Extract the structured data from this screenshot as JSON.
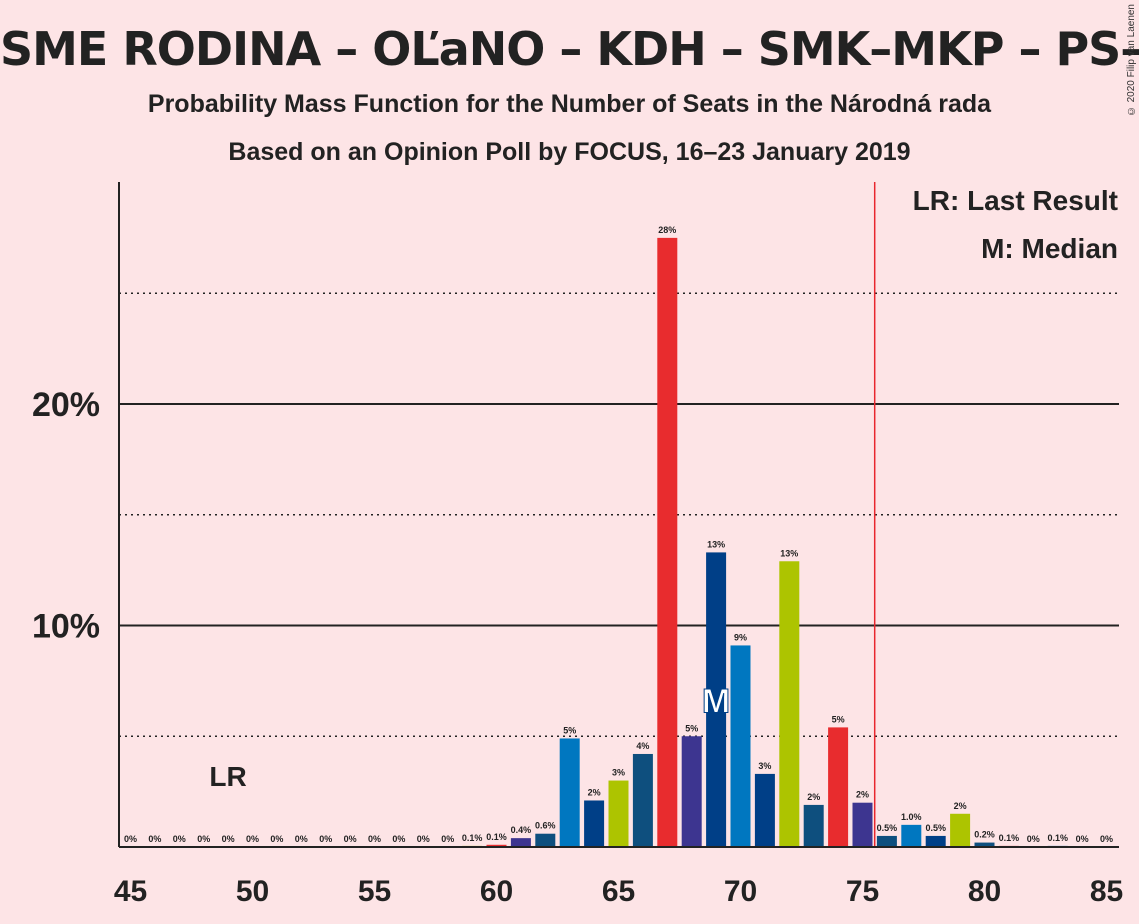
{
  "title": "SME RODINA – OĽaNO – KDH – SMK–MKP – PS–SPOLU",
  "subtitle1": "Probability Mass Function for the Number of Seats in the Národná rada",
  "subtitle2": "Based on an Opinion Poll by FOCUS, 16–23 January 2019",
  "copyright": "© 2020 Filip van Laenen",
  "legend": {
    "lr": "LR: Last Result",
    "median": "M: Median"
  },
  "markers": {
    "lr_label": "LR",
    "lr_seat": 49,
    "median_label": "M",
    "median_seat": 69,
    "majority_seat": 76
  },
  "colors": {
    "background": "#fde4e6",
    "majority_line": "#e8262e",
    "palette": [
      "#0077c0",
      "#003f87",
      "#adc400",
      "#0e4f7e",
      "#e82c2e",
      "#3d3590"
    ]
  },
  "chart_data": {
    "type": "bar",
    "x": [
      45,
      46,
      47,
      48,
      49,
      50,
      51,
      52,
      53,
      54,
      55,
      56,
      57,
      58,
      59,
      60,
      61,
      62,
      63,
      64,
      65,
      66,
      67,
      68,
      69,
      70,
      71,
      72,
      73,
      74,
      75,
      76,
      77,
      78,
      79,
      80,
      81,
      82,
      83,
      84,
      85
    ],
    "values": [
      0,
      0,
      0,
      0,
      0,
      0,
      0,
      0,
      0,
      0,
      0,
      0,
      0,
      0,
      0.05,
      0.1,
      0.4,
      0.6,
      4.9,
      2.1,
      3.0,
      4.2,
      27.5,
      5.0,
      13.3,
      9.1,
      3.3,
      12.9,
      1.9,
      5.4,
      2.0,
      0.5,
      1.0,
      0.5,
      1.5,
      0.2,
      0.05,
      0,
      0.05,
      0,
      0
    ],
    "labels": [
      "0%",
      "0%",
      "0%",
      "0%",
      "0%",
      "0%",
      "0%",
      "0%",
      "0%",
      "0%",
      "0%",
      "0%",
      "0%",
      "0%",
      "0.1%",
      "0.1%",
      "0.4%",
      "0.6%",
      "5%",
      "2%",
      "3%",
      "4%",
      "28%",
      "5%",
      "13%",
      "9%",
      "3%",
      "13%",
      "2%",
      "5%",
      "2%",
      "0.5%",
      "1.0%",
      "0.5%",
      "2%",
      "0.2%",
      "0.1%",
      "0%",
      "0.1%",
      "0%",
      "0%"
    ],
    "colors": [
      "#0077c0",
      "#003f87",
      "#adc400",
      "#0e4f7e",
      "#e82c2e",
      "#3d3590",
      "#0077c0",
      "#003f87",
      "#adc400",
      "#0e4f7e",
      "#e82c2e",
      "#3d3590",
      "#0077c0",
      "#003f87",
      "#adc400",
      "#e82c2e",
      "#3d3590",
      "#0e4f7e",
      "#0077c0",
      "#003f87",
      "#adc400",
      "#0e4f7e",
      "#e82c2e",
      "#3d3590",
      "#003f87",
      "#0077c0",
      "#003f87",
      "#adc400",
      "#0e4f7e",
      "#e82c2e",
      "#3d3590",
      "#0e4f7e",
      "#0077c0",
      "#003f87",
      "#adc400",
      "#0e4f7e",
      "#e82c2e",
      "#3d3590",
      "#0077c0",
      "#003f87",
      "#adc400"
    ],
    "xticks": [
      45,
      50,
      55,
      60,
      65,
      70,
      75,
      80,
      85
    ],
    "yticks_labeled": [
      {
        "value": 10,
        "label": "10%"
      },
      {
        "value": 20,
        "label": "20%"
      }
    ],
    "ygrid_dotted": [
      5,
      15,
      25
    ],
    "ylim": [
      0,
      30
    ],
    "xlim": [
      45,
      85
    ],
    "grid": true,
    "legend_position": "top-right"
  }
}
